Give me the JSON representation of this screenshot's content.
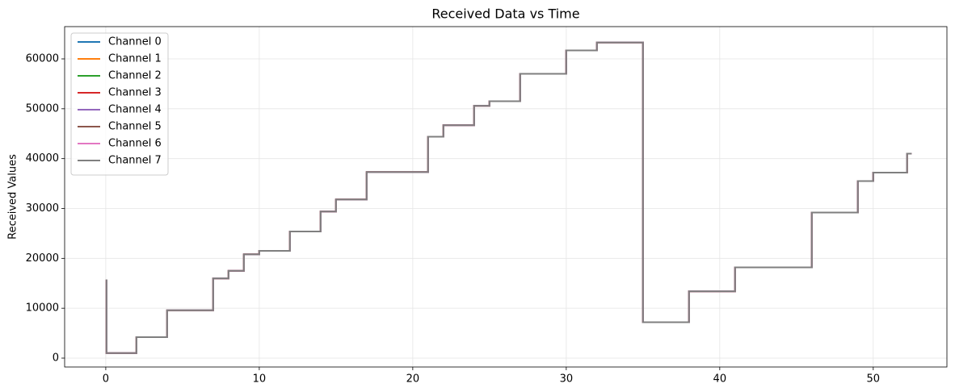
{
  "chart_data": {
    "type": "line",
    "title": "Received Data vs Time",
    "y_label": "Received Values",
    "drawstyle": "steps-post",
    "grid": true,
    "legend": "upper left",
    "xlim": [
      -2.68,
      54.8
    ],
    "ylim": [
      -1780,
      66470
    ],
    "xticks": [
      0,
      10,
      20,
      30,
      40,
      50
    ],
    "yticks": [
      0,
      10000,
      20000,
      30000,
      40000,
      50000,
      60000
    ],
    "x": [
      0,
      0.05,
      2,
      4,
      7,
      8,
      9,
      10,
      12,
      14,
      15,
      17,
      21,
      22,
      24,
      25,
      27,
      30,
      32,
      35,
      38,
      41,
      46,
      49,
      50,
      52.2,
      52.5
    ],
    "series": [
      {
        "name": "Channel 0",
        "color": "#1f77b4",
        "values": [
          15600,
          1000,
          4200,
          9600,
          16000,
          17500,
          20800,
          21500,
          25400,
          29400,
          31800,
          37300,
          44400,
          46700,
          50600,
          51500,
          57000,
          61700,
          63300,
          7200,
          13400,
          18200,
          29200,
          35500,
          37200,
          41000,
          41000
        ]
      },
      {
        "name": "Channel 1",
        "color": "#ff7f0e",
        "values": [
          15600,
          1000,
          4200,
          9600,
          16000,
          17500,
          20800,
          21500,
          25400,
          29400,
          31800,
          37300,
          44400,
          46700,
          50600,
          51500,
          57000,
          61700,
          63300,
          7200,
          13400,
          18200,
          29200,
          35500,
          37200,
          41000,
          41000
        ]
      },
      {
        "name": "Channel 2",
        "color": "#2ca02c",
        "values": [
          15600,
          1000,
          4200,
          9600,
          16000,
          17500,
          20800,
          21500,
          25400,
          29400,
          31800,
          37300,
          44400,
          46700,
          50600,
          51500,
          57000,
          61700,
          63300,
          7200,
          13400,
          18200,
          29200,
          35500,
          37200,
          41000,
          41000
        ]
      },
      {
        "name": "Channel 3",
        "color": "#d62728",
        "values": [
          15600,
          1000,
          4200,
          9600,
          16000,
          17500,
          20800,
          21500,
          25400,
          29400,
          31800,
          37300,
          44400,
          46700,
          50600,
          51500,
          57000,
          61700,
          63300,
          7200,
          13400,
          18200,
          29200,
          35500,
          37200,
          41000,
          41000
        ]
      },
      {
        "name": "Channel 4",
        "color": "#9467bd",
        "values": [
          15600,
          1000,
          4200,
          9600,
          16000,
          17500,
          20800,
          21500,
          25400,
          29400,
          31800,
          37300,
          44400,
          46700,
          50600,
          51500,
          57000,
          61700,
          63300,
          7200,
          13400,
          18200,
          29200,
          35500,
          37200,
          41000,
          41000
        ]
      },
      {
        "name": "Channel 5",
        "color": "#8c564b",
        "values": [
          15600,
          1000,
          4200,
          9600,
          16000,
          17500,
          20800,
          21500,
          25400,
          29400,
          31800,
          37300,
          44400,
          46700,
          50600,
          51500,
          57000,
          61700,
          63300,
          7200,
          13400,
          18200,
          29200,
          35500,
          37200,
          41000,
          41000
        ]
      },
      {
        "name": "Channel 6",
        "color": "#e377c2",
        "values": [
          15600,
          1000,
          4200,
          9600,
          16000,
          17500,
          20800,
          21500,
          25400,
          29400,
          31800,
          37300,
          44400,
          46700,
          50600,
          51500,
          57000,
          61700,
          63300,
          7200,
          13400,
          18200,
          29200,
          35500,
          37200,
          41000,
          41000
        ]
      },
      {
        "name": "Channel 7",
        "color": "#7f7f7f",
        "values": [
          15600,
          1000,
          4200,
          9600,
          16000,
          17500,
          20800,
          21500,
          25400,
          29400,
          31800,
          37300,
          44400,
          46700,
          50600,
          51500,
          57000,
          61700,
          63300,
          7200,
          13400,
          18200,
          29200,
          35500,
          37200,
          41000,
          41000
        ]
      }
    ]
  }
}
